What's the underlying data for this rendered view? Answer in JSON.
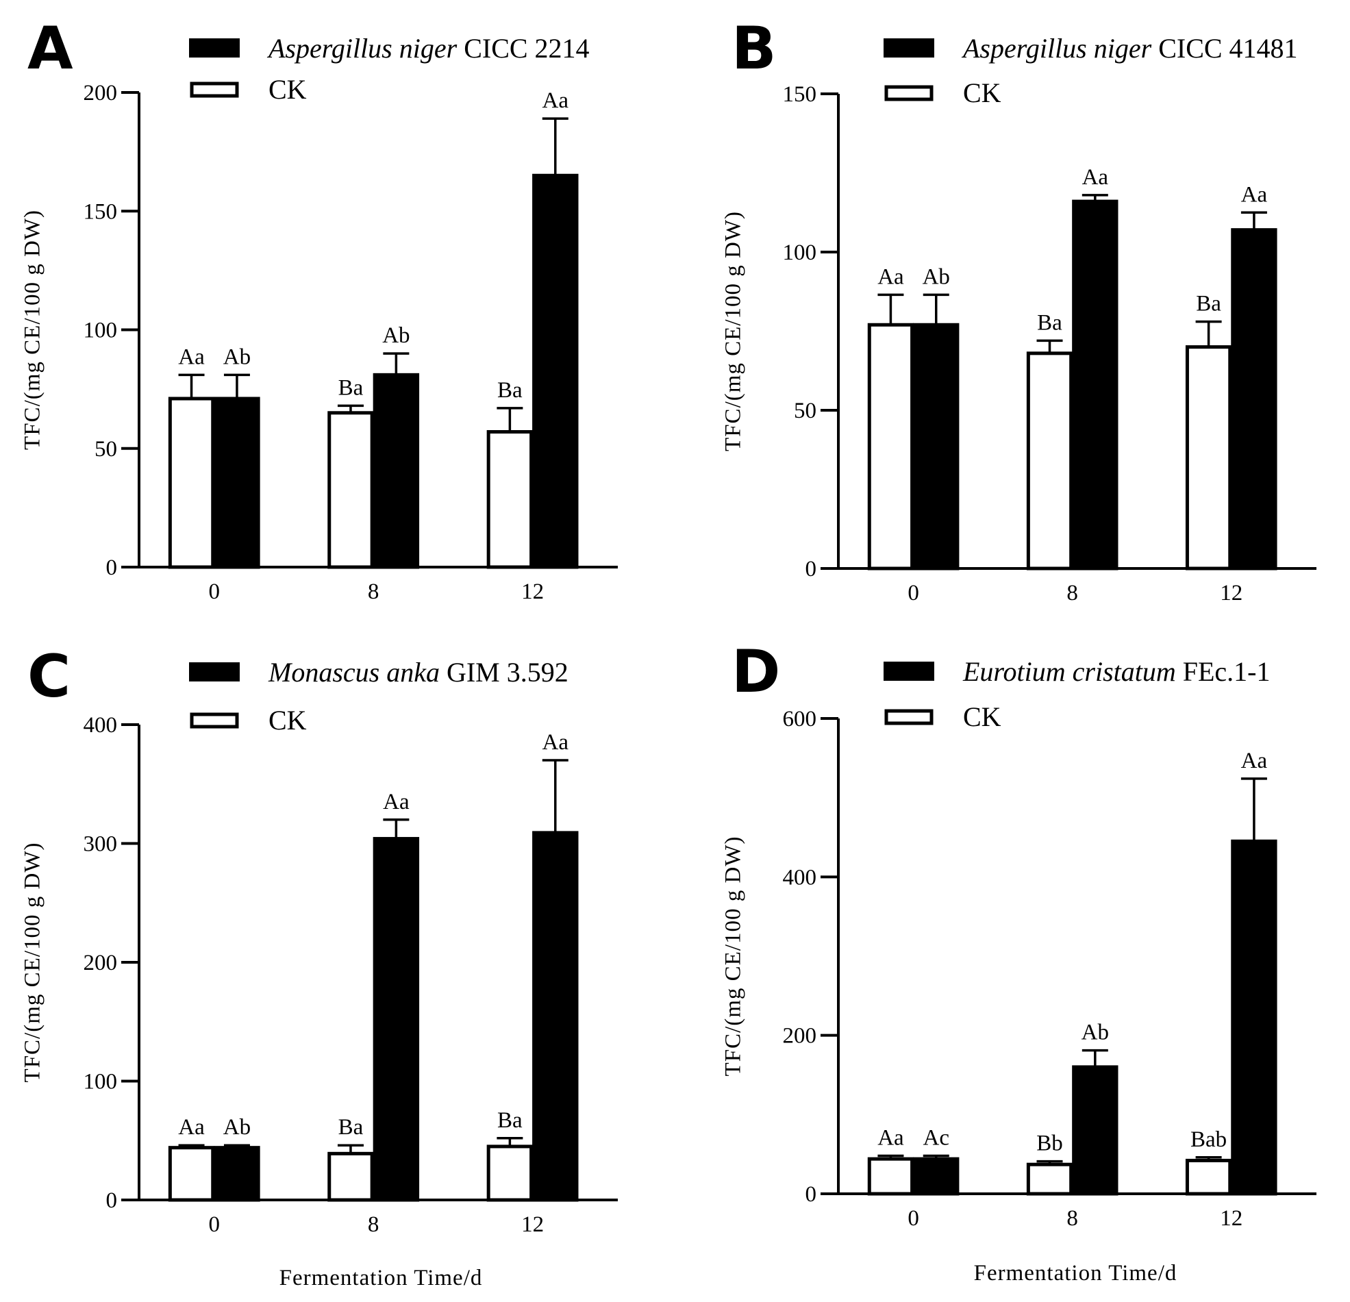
{
  "figure": {
    "x_axis_label_bottom_left": "Fermentation Time/d",
    "x_axis_label_bottom_right": "Fermentation Time/d"
  },
  "colors": {
    "treatment_fill": "#000000",
    "ck_fill": "#ffffff",
    "axis": "#000000"
  },
  "chart_data": [
    {
      "panel": "A",
      "type": "bar",
      "categories": [
        "0",
        "8",
        "12"
      ],
      "ylabel": "TFC/(mg CE/100 g DW)",
      "xlabel": "",
      "ylim": [
        0,
        200
      ],
      "yticks": [
        0,
        50,
        100,
        150,
        200
      ],
      "legend": {
        "placement": "top",
        "treatment": {
          "italic": "Aspergillus niger",
          "plain": " CICC 2214"
        },
        "ck": "CK"
      },
      "series": [
        {
          "name": "CK",
          "values": [
            71,
            65,
            57
          ],
          "errors": [
            10,
            3,
            10
          ],
          "labels": [
            "Aa",
            "Ba",
            "Ba"
          ]
        },
        {
          "name": "Aspergillus niger CICC 2214",
          "values": [
            71,
            81,
            165
          ],
          "errors": [
            10,
            9,
            24
          ],
          "labels": [
            "Ab",
            "Ab",
            "Aa"
          ]
        }
      ]
    },
    {
      "panel": "B",
      "type": "bar",
      "categories": [
        "0",
        "8",
        "12"
      ],
      "ylabel": "TFC/(mg CE/100 g DW)",
      "xlabel": "",
      "ylim": [
        0,
        150
      ],
      "yticks": [
        0,
        50,
        100,
        150
      ],
      "legend": {
        "placement": "top",
        "treatment": {
          "italic": "Aspergillus niger",
          "plain": " CICC 41481"
        },
        "ck": "CK"
      },
      "series": [
        {
          "name": "CK",
          "values": [
            77,
            68,
            70
          ],
          "errors": [
            9.5,
            4,
            8
          ],
          "labels": [
            "Aa",
            "Ba",
            "Ba"
          ]
        },
        {
          "name": "Aspergillus niger CICC 41481",
          "values": [
            77,
            116,
            107
          ],
          "errors": [
            9.5,
            2,
            5.5
          ],
          "labels": [
            "Ab",
            "Aa",
            "Aa"
          ]
        }
      ]
    },
    {
      "panel": "C",
      "type": "bar",
      "categories": [
        "0",
        "8",
        "12"
      ],
      "ylabel": "TFC/(mg CE/100 g DW)",
      "xlabel": "",
      "ylim": [
        0,
        400
      ],
      "yticks": [
        0,
        100,
        200,
        300,
        400
      ],
      "legend": {
        "placement": "top",
        "treatment": {
          "italic": "Monascus anka",
          "plain": " GIM 3.592"
        },
        "ck": "CK"
      },
      "series": [
        {
          "name": "CK",
          "values": [
            44,
            39,
            45
          ],
          "errors": [
            2,
            7,
            7
          ],
          "labels": [
            "Aa",
            "Ba",
            "Ba"
          ]
        },
        {
          "name": "Monascus anka GIM 3.592",
          "values": [
            44,
            304,
            309
          ],
          "errors": [
            2,
            16,
            61
          ],
          "labels": [
            "Ab",
            "Aa",
            "Aa"
          ]
        }
      ]
    },
    {
      "panel": "D",
      "type": "bar",
      "categories": [
        "0",
        "8",
        "12"
      ],
      "ylabel": "TFC/(mg CE/100 g DW)",
      "xlabel": "",
      "ylim": [
        0,
        600
      ],
      "yticks": [
        0,
        200,
        400,
        600
      ],
      "legend": {
        "placement": "top",
        "treatment": {
          "italic": "Eurotium cristatum",
          "plain": " FEc.1-1"
        },
        "ck": "CK"
      },
      "series": [
        {
          "name": "CK",
          "values": [
            44,
            37,
            42
          ],
          "errors": [
            4,
            4,
            4
          ],
          "labels": [
            "Aa",
            "Bb",
            "Bab"
          ]
        },
        {
          "name": "Eurotium cristatum FEc.1-1",
          "values": [
            44,
            160,
            445
          ],
          "errors": [
            4,
            21,
            79
          ],
          "labels": [
            "Ac",
            "Ab",
            "Aa"
          ]
        }
      ]
    }
  ]
}
